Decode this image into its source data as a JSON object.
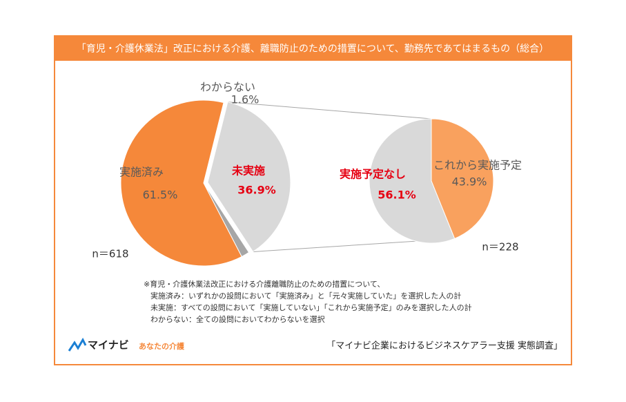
{
  "title": "「育児・介護休業法」改正における介護、離職防止のための措置について、勤務先であてはまるもの（総合）",
  "chart_data": [
    {
      "type": "pie",
      "categories": [
        "実施済み",
        "未実施",
        "わからない"
      ],
      "values": [
        61.5,
        36.9,
        1.6
      ],
      "value_labels": [
        "61.5%",
        "36.9%",
        "1.6%"
      ],
      "colors": [
        "#f5883a",
        "#d9d9d9",
        "#a6a6a6"
      ],
      "label_colors": [
        "#595959",
        "#e60012",
        "#595959"
      ],
      "n_label": "n＝618"
    },
    {
      "type": "pie",
      "categories": [
        "これから実施予定",
        "実施予定なし"
      ],
      "values": [
        43.9,
        56.1
      ],
      "value_labels": [
        "43.9%",
        "56.1%"
      ],
      "colors": [
        "#f9a15e",
        "#d9d9d9"
      ],
      "label_colors": [
        "#595959",
        "#e60012"
      ],
      "n_label": "n＝228"
    }
  ],
  "notes": [
    "※育児・介護休業法改正における介護離職防止のための措置について、",
    "実施済み：いずれかの設問において「実施済み」と「元々実施していた」を選択した人の計",
    "未実施：すべての設問において「実施していない」「これから実施予定」のみを選択した人の計",
    "わからない：全ての設問においてわからないを選択"
  ],
  "logo": {
    "brand": "マイナビ",
    "sub": "あなたの介護"
  },
  "source": "「マイナビ企業におけるビジネスケアラー支援 実態調査」"
}
